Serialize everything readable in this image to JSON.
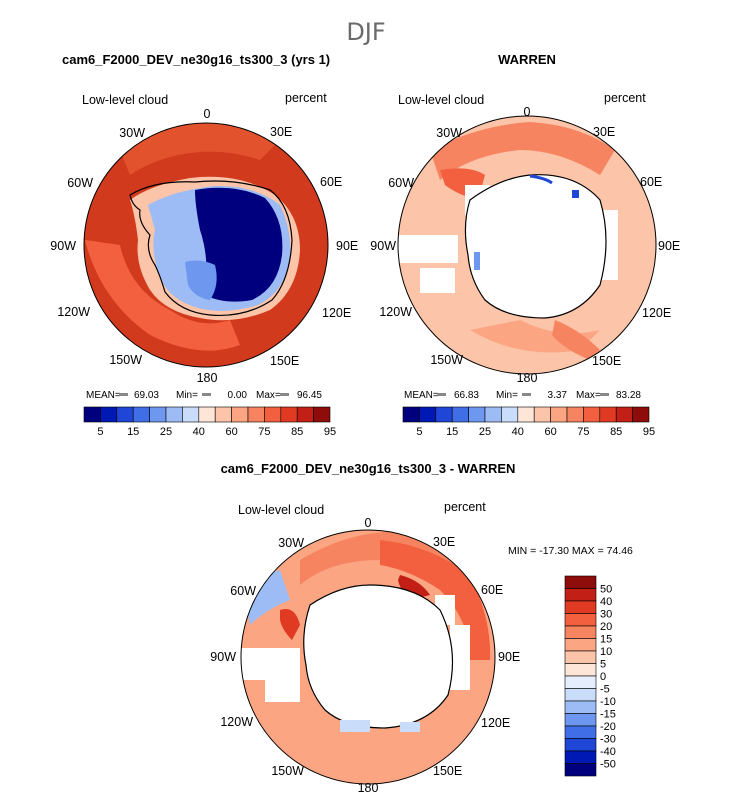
{
  "title": "DJF",
  "colors": {
    "palette_full": [
      "#00007f",
      "#0019b4",
      "#1f46d6",
      "#3f6ee6",
      "#6e98ef",
      "#9dbcf5",
      "#c9ddfb",
      "#fde5d8",
      "#fcc4a8",
      "#fba583",
      "#f78461",
      "#f2603f",
      "#e13a23",
      "#c21f16",
      "#8e0c0a"
    ],
    "palette_diff": [
      "#00007f",
      "#0019b4",
      "#1f46d6",
      "#3f6ee6",
      "#6e98ef",
      "#9dbcf5",
      "#c9ddfb",
      "#e6eefd",
      "#fde5d8",
      "#fcc4a8",
      "#fba583",
      "#f78461",
      "#f2603f",
      "#e13a23",
      "#c21f16",
      "#8e0c0a"
    ],
    "land_blue": "#00007f",
    "ocean_red": "#d23a1e",
    "ocean_mid": "#f2603f"
  },
  "chart_data": [
    {
      "type": "heatmap",
      "projection": "south-polar-stereographic",
      "title": "cam6_F2000_DEV_ne30g16_ts300_3 (yrs 1)",
      "left_label": "Low-level cloud",
      "right_label": "percent",
      "lon_labels": [
        "0",
        "30E",
        "60E",
        "90E",
        "120E",
        "150E",
        "180",
        "150W",
        "120W",
        "90W",
        "60W",
        "30W"
      ],
      "stats": {
        "mean_label": "MEAN=",
        "mean": "69.03",
        "min_label": "Min=",
        "min": "0.00",
        "max_label": "Max=",
        "max": "96.45"
      },
      "colorbar": {
        "levels": [
          "5",
          "15",
          "25",
          "40",
          "60",
          "75",
          "85",
          "95"
        ]
      }
    },
    {
      "type": "heatmap",
      "projection": "south-polar-stereographic",
      "title": "WARREN",
      "left_label": "Low-level cloud",
      "right_label": "percent",
      "lon_labels": [
        "0",
        "30E",
        "60E",
        "90E",
        "120E",
        "150E",
        "180",
        "150W",
        "120W",
        "90W",
        "60W",
        "30W"
      ],
      "stats": {
        "mean_label": "MEAN=",
        "mean": "66.83",
        "min_label": "Min=",
        "min": "3.37",
        "max_label": "Max=",
        "max": "83.28"
      },
      "colorbar": {
        "levels": [
          "5",
          "15",
          "25",
          "40",
          "60",
          "75",
          "85",
          "95"
        ]
      }
    },
    {
      "type": "heatmap",
      "projection": "south-polar-stereographic",
      "title": "cam6_F2000_DEV_ne30g16_ts300_3 - WARREN",
      "left_label": "Low-level cloud",
      "right_label": "percent",
      "lon_labels": [
        "0",
        "30E",
        "60E",
        "90E",
        "120E",
        "150E",
        "180",
        "150W",
        "120W",
        "90W",
        "60W",
        "30W"
      ],
      "stats_line": "MIN = -17.30 MAX =   74.46",
      "colorbar": {
        "levels": [
          "50",
          "40",
          "30",
          "20",
          "15",
          "10",
          "5",
          "0",
          "-5",
          "-10",
          "-15",
          "-20",
          "-30",
          "-40",
          "-50"
        ]
      }
    }
  ]
}
